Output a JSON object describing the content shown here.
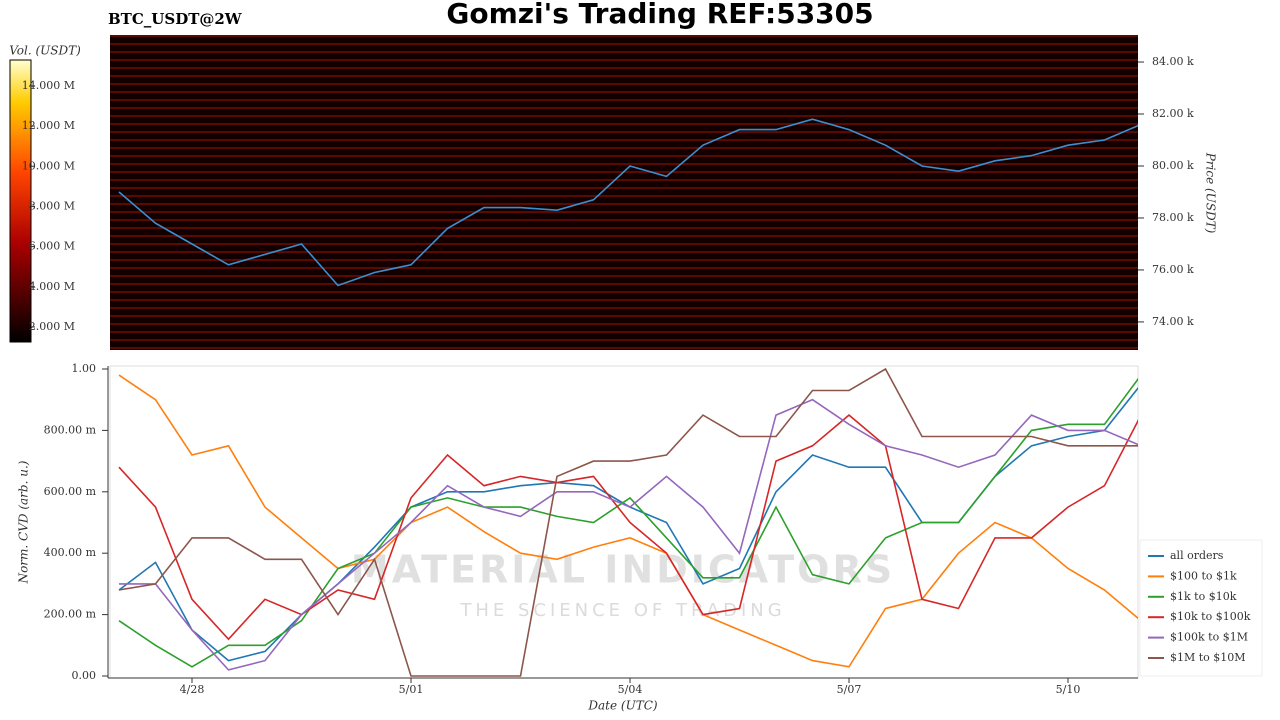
{
  "header": {
    "symbol": "BTC_USDT@2W",
    "title": "Gomzi's Trading REF:53305"
  },
  "watermark": {
    "line1": "MATERIAL INDICATORS",
    "line2": "THE SCIENCE OF TRADING"
  },
  "chart_data": [
    {
      "type": "line",
      "y_label": "Price (USDT)",
      "ylim": [
        72.92,
        85.04
      ],
      "yticks": [
        {
          "value": 74,
          "label": "74.00 k"
        },
        {
          "value": 76,
          "label": "76.00 k"
        },
        {
          "value": 78,
          "label": "78.00 k"
        },
        {
          "value": 80,
          "label": "80.00 k"
        },
        {
          "value": 82,
          "label": "82.00 k"
        },
        {
          "value": 84,
          "label": "84.00 k"
        }
      ],
      "series": [
        {
          "name": "BTC_USDT",
          "color": "#3b8fd0",
          "values": [
            79.0,
            77.8,
            77.0,
            76.2,
            76.6,
            77.0,
            75.4,
            75.9,
            76.2,
            77.6,
            78.4,
            78.4,
            78.3,
            78.7,
            80.0,
            79.6,
            80.8,
            81.4,
            81.4,
            81.8,
            81.4,
            80.8,
            80.0,
            79.8,
            80.2,
            80.4,
            80.8,
            81.0,
            81.6
          ]
        }
      ],
      "colorbar": {
        "label": "Vol. (USDT)",
        "lim": [
          1250000,
          15290000
        ],
        "ticks": [
          {
            "value": 2000000,
            "label": "2.000 M"
          },
          {
            "value": 4000000,
            "label": "4.000 M"
          },
          {
            "value": 6000000,
            "label": "6.000 M"
          },
          {
            "value": 8000000,
            "label": "8.000 M"
          },
          {
            "value": 10000000,
            "label": "10.000 M"
          },
          {
            "value": 12000000,
            "label": "12.000 M"
          },
          {
            "value": 14000000,
            "label": "14.000 M"
          }
        ]
      }
    },
    {
      "type": "line",
      "x_label": "Date (UTC)",
      "y_label": "Norm. CVD (arb. u.)",
      "categories": [
        null,
        null,
        "4/28",
        null,
        null,
        null,
        null,
        null,
        "5/01",
        null,
        null,
        null,
        null,
        null,
        "5/04",
        null,
        null,
        null,
        null,
        null,
        "5/07",
        null,
        null,
        null,
        null,
        null,
        "5/10",
        null,
        null
      ],
      "ylim": [
        0,
        1
      ],
      "yticks": [
        {
          "value": 0,
          "label": "0.00"
        },
        {
          "value": 0.2,
          "label": "200.00 m"
        },
        {
          "value": 0.4,
          "label": "400.00 m"
        },
        {
          "value": 0.6,
          "label": "600.00 m"
        },
        {
          "value": 0.8,
          "label": "800.00 m"
        },
        {
          "value": 1,
          "label": "1.00"
        }
      ],
      "series": [
        {
          "name": "all orders",
          "color": "#1f77b4",
          "values": [
            0.28,
            0.37,
            0.15,
            0.05,
            0.08,
            0.2,
            0.3,
            0.42,
            0.55,
            0.6,
            0.6,
            0.62,
            0.63,
            0.62,
            0.55,
            0.5,
            0.3,
            0.35,
            0.6,
            0.72,
            0.68,
            0.68,
            0.5,
            0.5,
            0.65,
            0.75,
            0.78,
            0.8,
            0.95
          ]
        },
        {
          "name": "$100 to $1k",
          "color": "#ff7f0e",
          "values": [
            0.98,
            0.9,
            0.72,
            0.75,
            0.55,
            0.45,
            0.35,
            0.38,
            0.5,
            0.55,
            0.47,
            0.4,
            0.38,
            0.42,
            0.45,
            0.4,
            0.2,
            0.15,
            0.1,
            0.05,
            0.03,
            0.22,
            0.25,
            0.4,
            0.5,
            0.45,
            0.35,
            0.28,
            0.18
          ]
        },
        {
          "name": "$1k to $10k",
          "color": "#2ca02c",
          "values": [
            0.18,
            0.1,
            0.03,
            0.1,
            0.1,
            0.18,
            0.35,
            0.4,
            0.55,
            0.58,
            0.55,
            0.55,
            0.52,
            0.5,
            0.58,
            0.45,
            0.32,
            0.32,
            0.55,
            0.33,
            0.3,
            0.45,
            0.5,
            0.5,
            0.65,
            0.8,
            0.82,
            0.82,
            0.98
          ]
        },
        {
          "name": "$10k to $100k",
          "color": "#d62728",
          "values": [
            0.68,
            0.55,
            0.25,
            0.12,
            0.25,
            0.2,
            0.28,
            0.25,
            0.58,
            0.72,
            0.62,
            0.65,
            0.63,
            0.65,
            0.5,
            0.4,
            0.2,
            0.22,
            0.7,
            0.75,
            0.85,
            0.75,
            0.25,
            0.22,
            0.45,
            0.45,
            0.55,
            0.62,
            0.85
          ]
        },
        {
          "name": "$100k to $1M",
          "color": "#9467bd",
          "values": [
            0.3,
            0.3,
            0.15,
            0.02,
            0.05,
            0.2,
            0.3,
            0.4,
            0.5,
            0.62,
            0.55,
            0.52,
            0.6,
            0.6,
            0.55,
            0.65,
            0.55,
            0.4,
            0.85,
            0.9,
            0.82,
            0.75,
            0.72,
            0.68,
            0.72,
            0.85,
            0.8,
            0.8,
            0.75
          ]
        },
        {
          "name": "$1M to $10M",
          "color": "#8c564b",
          "values": [
            0.28,
            0.3,
            0.45,
            0.45,
            0.38,
            0.38,
            0.2,
            0.38,
            0.0,
            0.0,
            0.0,
            0.0,
            0.65,
            0.7,
            0.7,
            0.72,
            0.85,
            0.78,
            0.78,
            0.93,
            0.93,
            1.0,
            0.78,
            0.78,
            0.78,
            0.78,
            0.75,
            0.75,
            0.75
          ]
        }
      ]
    }
  ]
}
